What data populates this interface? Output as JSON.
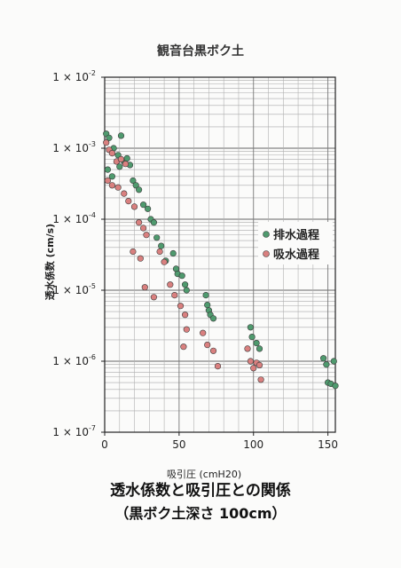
{
  "chart_data": {
    "type": "scatter",
    "title": "観音台黒ボク土",
    "xlabel": "吸引圧 (cmH20)",
    "ylabel": "透水係数 (cm/s)",
    "xlim": [
      0,
      155
    ],
    "ylim": [
      1e-07,
      0.01
    ],
    "yscale": "log",
    "grid": true,
    "legend_position": "right",
    "x_ticks": [
      0,
      50,
      100,
      150
    ],
    "y_ticks": [
      {
        "value": 0.01,
        "mant": "1 × 10",
        "exp": "-2"
      },
      {
        "value": 0.001,
        "mant": "1 × 10",
        "exp": "-3"
      },
      {
        "value": 0.0001,
        "mant": "1 × 10",
        "exp": "-4"
      },
      {
        "value": 1e-05,
        "mant": "1 × 10",
        "exp": "-5"
      },
      {
        "value": 1e-06,
        "mant": "1 × 10",
        "exp": "-6"
      },
      {
        "value": 1e-07,
        "mant": "1 × 10",
        "exp": "-7"
      }
    ],
    "series": [
      {
        "name": "排水過程",
        "color": "#4f9a6e",
        "points": [
          [
            1,
            0.0016
          ],
          [
            3,
            0.0014
          ],
          [
            6,
            0.001
          ],
          [
            9,
            0.0008
          ],
          [
            11,
            0.0015
          ],
          [
            13,
            0.00065
          ],
          [
            15,
            0.00072
          ],
          [
            17,
            0.00058
          ],
          [
            10,
            0.00055
          ],
          [
            2,
            0.0005
          ],
          [
            5,
            0.0004
          ],
          [
            19,
            0.00035
          ],
          [
            21,
            0.0003
          ],
          [
            23,
            0.00026
          ],
          [
            26,
            0.00016
          ],
          [
            29,
            0.00014
          ],
          [
            31,
            0.0001
          ],
          [
            33,
            9e-05
          ],
          [
            35,
            5.5e-05
          ],
          [
            38,
            4.2e-05
          ],
          [
            41,
            2.6e-05
          ],
          [
            46,
            3.3e-05
          ],
          [
            48,
            2e-05
          ],
          [
            49,
            1.7e-05
          ],
          [
            52,
            1.6e-05
          ],
          [
            54,
            1.2e-05
          ],
          [
            55,
            1e-05
          ],
          [
            68,
            8.5e-06
          ],
          [
            69,
            6.2e-06
          ],
          [
            70,
            5.2e-06
          ],
          [
            71,
            4.5e-06
          ],
          [
            73,
            4e-06
          ],
          [
            98,
            3e-06
          ],
          [
            99,
            2.2e-06
          ],
          [
            102,
            1.8e-06
          ],
          [
            104,
            1.5e-06
          ],
          [
            147,
            1.1e-06
          ],
          [
            149,
            9e-07
          ],
          [
            154,
            1e-06
          ],
          [
            150,
            5e-07
          ],
          [
            152,
            4.8e-07
          ],
          [
            155,
            4.5e-07
          ]
        ]
      },
      {
        "name": "吸水過程",
        "color": "#d9807f",
        "points": [
          [
            1,
            0.0012
          ],
          [
            3,
            0.00095
          ],
          [
            5,
            0.00085
          ],
          [
            8,
            0.00065
          ],
          [
            11,
            0.0007
          ],
          [
            14,
            0.0006
          ],
          [
            2,
            0.00035
          ],
          [
            5,
            0.0003
          ],
          [
            9,
            0.00028
          ],
          [
            13,
            0.00023
          ],
          [
            16,
            0.00018
          ],
          [
            20,
            0.00015
          ],
          [
            23,
            9e-05
          ],
          [
            26,
            7.5e-05
          ],
          [
            28,
            6e-05
          ],
          [
            19,
            3.5e-05
          ],
          [
            24,
            2.8e-05
          ],
          [
            27,
            1.1e-05
          ],
          [
            33,
            8e-06
          ],
          [
            37,
            3.5e-05
          ],
          [
            40,
            2.5e-05
          ],
          [
            44,
            1.2e-05
          ],
          [
            47,
            8.5e-06
          ],
          [
            51,
            6e-06
          ],
          [
            54,
            4.5e-06
          ],
          [
            55,
            2.8e-06
          ],
          [
            53,
            1.6e-06
          ],
          [
            66,
            2.5e-06
          ],
          [
            69,
            1.7e-06
          ],
          [
            73,
            1.4e-06
          ],
          [
            76,
            8.5e-07
          ],
          [
            96,
            1.5e-06
          ],
          [
            98,
            1e-06
          ],
          [
            100,
            8e-07
          ],
          [
            102,
            9.5e-07
          ],
          [
            104,
            8.8e-07
          ],
          [
            105,
            5.5e-07
          ]
        ]
      }
    ]
  },
  "captions": {
    "line1": "透水係数と吸引圧との関係",
    "line2": "（黒ボク土深さ 100cm）"
  }
}
